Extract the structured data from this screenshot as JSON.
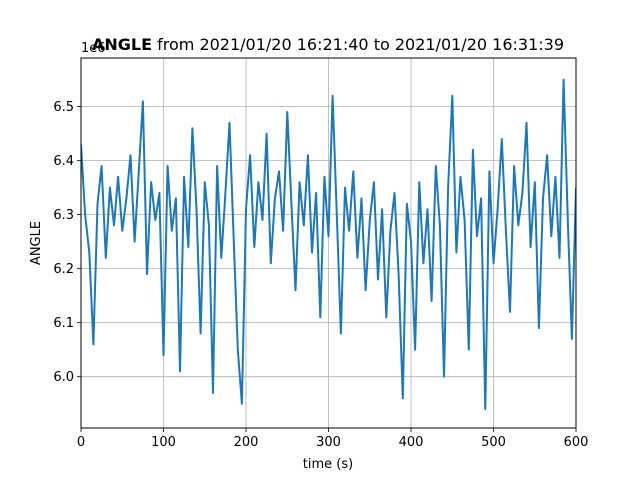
{
  "chart_data": {
    "type": "line",
    "title_bold": "ANGLE",
    "title_rest": " from 2021/01/20 16:21:40 to 2021/01/20 16:31:39",
    "xlabel": "time (s)",
    "ylabel": "ANGLE",
    "offset_label": "1e6",
    "xlim": [
      0,
      600
    ],
    "ylim": [
      5.905,
      6.59
    ],
    "x_ticks": [
      0,
      100,
      200,
      300,
      400,
      500,
      600
    ],
    "x_tick_labels": [
      "0",
      "100",
      "200",
      "300",
      "400",
      "500",
      "600"
    ],
    "y_ticks": [
      6.0,
      6.1,
      6.2,
      6.3,
      6.4,
      6.5
    ],
    "y_tick_labels": [
      "6.0",
      "6.1",
      "6.2",
      "6.3",
      "6.4",
      "6.5"
    ],
    "grid": true,
    "line_color": "#1f77b4",
    "series": [
      {
        "x": [
          0,
          5,
          10,
          15,
          20,
          25,
          30,
          35,
          40,
          45,
          50,
          55,
          60,
          65,
          70,
          75,
          80,
          85,
          90,
          95,
          100,
          105,
          110,
          115,
          120,
          125,
          130,
          135,
          140,
          145,
          150,
          155,
          160,
          165,
          170,
          175,
          180,
          185,
          190,
          195,
          200,
          205,
          210,
          215,
          220,
          225,
          230,
          235,
          240,
          245,
          250,
          255,
          260,
          265,
          270,
          275,
          280,
          285,
          290,
          295,
          300,
          305,
          310,
          315,
          320,
          325,
          330,
          335,
          340,
          345,
          350,
          355,
          360,
          365,
          370,
          375,
          380,
          385,
          390,
          395,
          400,
          405,
          410,
          415,
          420,
          425,
          430,
          435,
          440,
          445,
          450,
          455,
          460,
          465,
          470,
          475,
          480,
          485,
          490,
          495,
          500,
          505,
          510,
          515,
          520,
          525,
          530,
          535,
          540,
          545,
          550,
          555,
          560,
          565,
          570,
          575,
          580,
          585,
          590,
          595,
          600
        ],
        "values": [
          6.43,
          6.3,
          6.23,
          6.06,
          6.32,
          6.39,
          6.22,
          6.35,
          6.28,
          6.37,
          6.27,
          6.33,
          6.41,
          6.25,
          6.38,
          6.51,
          6.19,
          6.36,
          6.29,
          6.34,
          6.04,
          6.39,
          6.27,
          6.33,
          6.01,
          6.37,
          6.24,
          6.46,
          6.31,
          6.08,
          6.36,
          6.28,
          5.97,
          6.39,
          6.22,
          6.34,
          6.47,
          6.26,
          6.05,
          5.95,
          6.31,
          6.41,
          6.24,
          6.36,
          6.29,
          6.45,
          6.21,
          6.33,
          6.38,
          6.27,
          6.49,
          6.32,
          6.16,
          6.36,
          6.28,
          6.41,
          6.23,
          6.34,
          6.11,
          6.37,
          6.26,
          6.52,
          6.3,
          6.08,
          6.35,
          6.27,
          6.38,
          6.22,
          6.33,
          6.16,
          6.29,
          6.36,
          6.18,
          6.31,
          6.11,
          6.27,
          6.34,
          6.19,
          5.96,
          6.32,
          6.25,
          6.05,
          6.36,
          6.21,
          6.31,
          6.14,
          6.39,
          6.28,
          6.0,
          6.35,
          6.52,
          6.23,
          6.37,
          6.29,
          6.05,
          6.42,
          6.26,
          6.33,
          5.94,
          6.38,
          6.21,
          6.31,
          6.44,
          6.27,
          6.12,
          6.39,
          6.28,
          6.34,
          6.47,
          6.24,
          6.36,
          6.09,
          6.33,
          6.41,
          6.26,
          6.37,
          6.22,
          6.55,
          6.29,
          6.07,
          6.35
        ]
      }
    ]
  }
}
